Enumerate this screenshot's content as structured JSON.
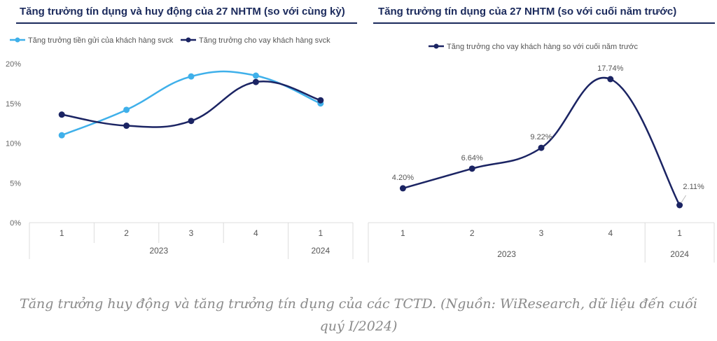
{
  "chart_data": [
    {
      "type": "line",
      "title": "Tăng trưởng tín dụng và huy động của 27 NHTM (so với cùng kỳ)",
      "xlabel": "",
      "ylabel": "",
      "categories": [
        "1",
        "2",
        "3",
        "4",
        "1"
      ],
      "category_groups": [
        {
          "label": "2023",
          "span": 4
        },
        {
          "label": "2024",
          "span": 1
        }
      ],
      "yticks": [
        "0%",
        "5%",
        "10%",
        "15%",
        "20%"
      ],
      "ylim": [
        0,
        20
      ],
      "grid": false,
      "legend_position": "top",
      "series": [
        {
          "name": "Tăng trưởng tiền gửi của khách hàng svck",
          "color": "#3fb0ea",
          "values": [
            11.0,
            14.2,
            18.4,
            18.5,
            15.0
          ]
        },
        {
          "name": "Tăng trưởng cho vay khách hàng svck",
          "color": "#1b2463",
          "values": [
            13.6,
            12.2,
            12.8,
            17.7,
            15.4
          ]
        }
      ]
    },
    {
      "type": "line",
      "title": "Tăng trưởng tín dụng của 27 NHTM (so với cuối năm trước)",
      "xlabel": "",
      "ylabel": "",
      "categories": [
        "1",
        "2",
        "3",
        "4",
        "1"
      ],
      "category_groups": [
        {
          "label": "2023",
          "span": 4
        },
        {
          "label": "2024",
          "span": 1
        }
      ],
      "ylim": [
        0,
        20
      ],
      "grid": false,
      "legend_position": "top",
      "series": [
        {
          "name": "Tăng trưởng cho vay khách hàng so với cuối năm trước",
          "color": "#1b2463",
          "values": [
            4.2,
            6.64,
            9.22,
            17.74,
            2.11
          ],
          "labels": [
            "4.20%",
            "6.64%",
            "9.22%",
            "17.74%",
            "2.11%"
          ]
        }
      ]
    }
  ],
  "caption": {
    "line1": "Tăng trưởng huy động và tăng trưởng tín dụng của các TCTD. (Nguồn: WiResearch, dữ liệu đến cuối",
    "line2": "quý I/2024)"
  }
}
